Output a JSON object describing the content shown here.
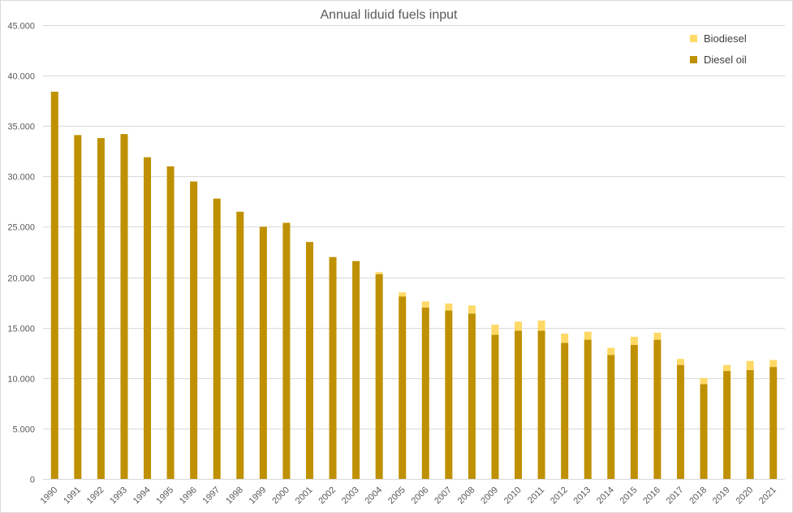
{
  "chart_data": {
    "type": "bar",
    "stacked": true,
    "title": "Annual liduid fuels input",
    "xlabel": "",
    "ylabel": "",
    "ylim": [
      0,
      45000
    ],
    "y_ticks": [
      0,
      5000,
      10000,
      15000,
      20000,
      25000,
      30000,
      35000,
      40000,
      45000
    ],
    "y_tick_labels": [
      "0",
      "5.000",
      "10.000",
      "15.000",
      "20.000",
      "25.000",
      "30.000",
      "35.000",
      "40.000",
      "45.000"
    ],
    "grid": true,
    "legend_position": "top-right",
    "categories": [
      "1990",
      "1991",
      "1992",
      "1993",
      "1994",
      "1995",
      "1996",
      "1997",
      "1998",
      "1999",
      "2000",
      "2001",
      "2002",
      "2003",
      "2004",
      "2005",
      "2006",
      "2007",
      "2008",
      "2009",
      "2010",
      "2011",
      "2012",
      "2013",
      "2014",
      "2015",
      "2016",
      "2017",
      "2018",
      "2019",
      "2020",
      "2021"
    ],
    "series": [
      {
        "name": "Diesel oil",
        "color": "#bf9000",
        "values": [
          38400,
          34100,
          33800,
          34200,
          31900,
          31000,
          29500,
          27800,
          26500,
          25000,
          25400,
          23500,
          22000,
          21600,
          20300,
          18100,
          17000,
          16700,
          16400,
          14300,
          14700,
          14700,
          13500,
          13800,
          12300,
          13300,
          13800,
          11300,
          9400,
          10700,
          10800,
          11100
        ]
      },
      {
        "name": "Biodiesel",
        "color": "#ffd966",
        "values": [
          0,
          0,
          0,
          0,
          0,
          0,
          0,
          0,
          0,
          0,
          0,
          0,
          0,
          0,
          200,
          400,
          600,
          700,
          800,
          1000,
          900,
          1000,
          900,
          800,
          700,
          800,
          700,
          600,
          600,
          600,
          900,
          700
        ]
      }
    ],
    "legend_order": [
      "Biodiesel",
      "Diesel oil"
    ]
  }
}
